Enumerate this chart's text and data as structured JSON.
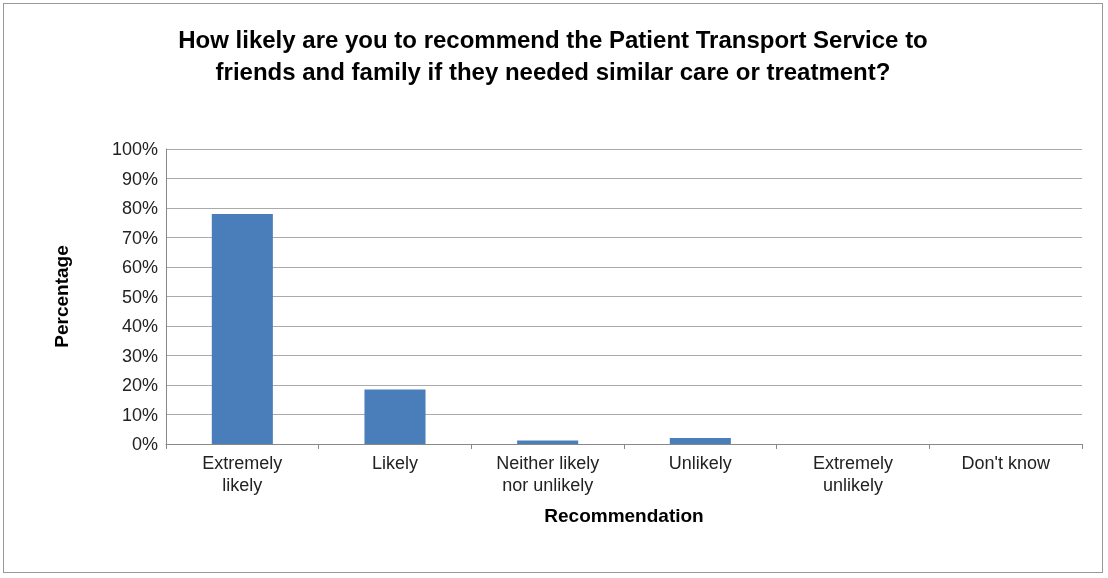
{
  "chart_data": {
    "type": "bar",
    "title": "How likely are you to recommend the Patient Transport Service to\nfriends and family if they needed similar care or treatment?",
    "xlabel": "Recommendation",
    "ylabel": "Percentage",
    "categories": [
      "Extremely\nlikely",
      "Likely",
      "Neither likely\nnor unlikely",
      "Unlikely",
      "Extremely\nunlikely",
      "Don't know"
    ],
    "values": [
      78,
      18.5,
      1.2,
      2,
      0,
      0
    ],
    "color": "#4a7ebb",
    "ylim": [
      0,
      100
    ],
    "yticks": [
      {
        "value": 0,
        "label": "0%"
      },
      {
        "value": 10,
        "label": "10%"
      },
      {
        "value": 20,
        "label": "20%"
      },
      {
        "value": 30,
        "label": "30%"
      },
      {
        "value": 40,
        "label": "40%"
      },
      {
        "value": 50,
        "label": "50%"
      },
      {
        "value": 60,
        "label": "60%"
      },
      {
        "value": 70,
        "label": "70%"
      },
      {
        "value": 80,
        "label": "80%"
      },
      {
        "value": 90,
        "label": "90%"
      },
      {
        "value": 100,
        "label": "100%"
      }
    ],
    "grid": "y"
  }
}
